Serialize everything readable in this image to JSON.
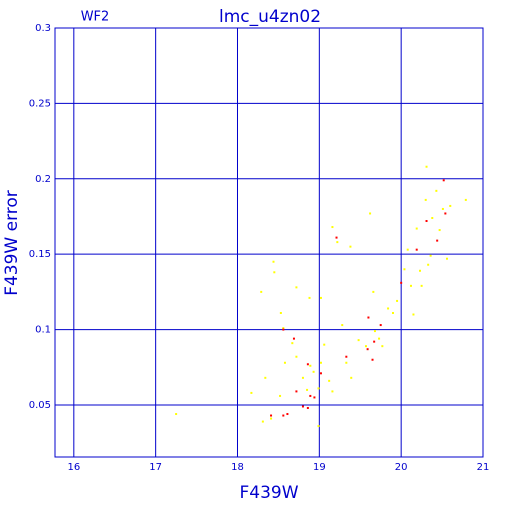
{
  "chart_data": {
    "type": "scatter",
    "title": "lmc_u4zn02",
    "annotation": "WF2",
    "x_label": "F439W",
    "y_label": "F439W error",
    "xlim": [
      15.77,
      21.0
    ],
    "ylim": [
      0.0155,
      0.3
    ],
    "xticks": [
      16,
      17,
      18,
      19,
      20,
      21
    ],
    "yticks": [
      0.05,
      0.1,
      0.15,
      0.2,
      0.25,
      0.3
    ],
    "grid": true,
    "grid_color": "#0000cc",
    "series": [
      {
        "color": "#ffff00",
        "x": [
          17.25,
          18.31,
          18.17,
          18.34,
          18.29,
          18.44,
          18.45,
          18.53,
          18.56,
          18.58,
          18.52,
          18.41,
          18.72,
          18.67,
          18.72,
          18.8,
          18.85,
          18.88,
          18.89,
          18.93,
          18.99,
          18.99,
          19.02,
          19.06,
          19.02,
          19.12,
          19.16,
          19.16,
          19.22,
          19.28,
          19.38,
          19.33,
          19.39,
          19.48,
          19.57,
          19.62,
          19.66,
          19.68,
          19.73,
          19.77,
          19.84,
          19.9,
          19.95,
          20.04,
          20.08,
          20.15,
          20.12,
          20.19,
          20.23,
          20.25,
          20.3,
          20.31,
          20.33,
          20.36,
          20.38,
          20.43,
          20.47,
          20.51,
          20.56,
          20.6,
          20.79
        ],
        "values": [
          0.044,
          0.039,
          0.058,
          0.068,
          0.125,
          0.145,
          0.138,
          0.111,
          0.101,
          0.078,
          0.056,
          0.041,
          0.128,
          0.091,
          0.082,
          0.068,
          0.06,
          0.121,
          0.076,
          0.072,
          0.061,
          0.036,
          0.121,
          0.09,
          0.078,
          0.066,
          0.059,
          0.168,
          0.158,
          0.103,
          0.155,
          0.078,
          0.068,
          0.093,
          0.089,
          0.177,
          0.125,
          0.099,
          0.094,
          0.089,
          0.114,
          0.111,
          0.119,
          0.14,
          0.153,
          0.11,
          0.129,
          0.167,
          0.139,
          0.129,
          0.186,
          0.208,
          0.143,
          0.149,
          0.174,
          0.192,
          0.166,
          0.18,
          0.147,
          0.182,
          0.186
        ]
      },
      {
        "color": "#ff0000",
        "x": [
          18.41,
          18.56,
          18.61,
          18.56,
          18.69,
          18.72,
          18.8,
          18.86,
          18.86,
          18.89,
          18.94,
          19.02,
          19.21,
          19.33,
          19.6,
          19.59,
          19.65,
          19.67,
          19.75,
          20.0,
          20.19,
          20.31,
          20.44,
          20.52,
          20.54
        ],
        "values": [
          0.043,
          0.043,
          0.044,
          0.1,
          0.094,
          0.059,
          0.049,
          0.048,
          0.077,
          0.056,
          0.055,
          0.071,
          0.161,
          0.082,
          0.108,
          0.087,
          0.08,
          0.092,
          0.103,
          0.131,
          0.153,
          0.172,
          0.159,
          0.199,
          0.177
        ]
      }
    ]
  }
}
